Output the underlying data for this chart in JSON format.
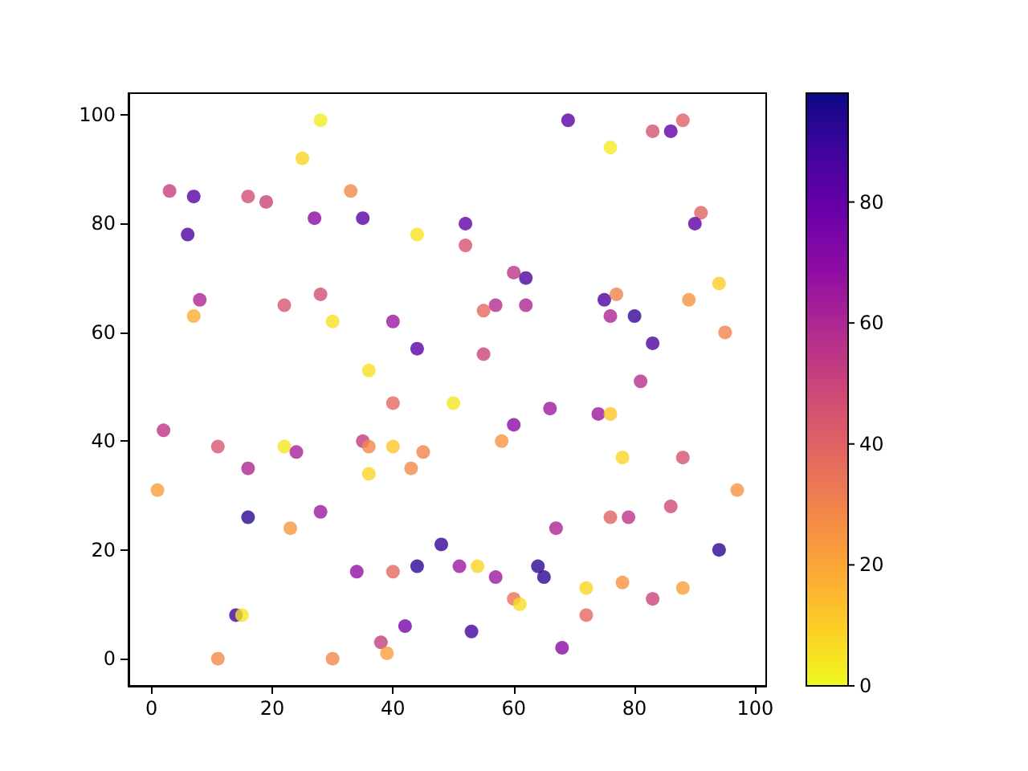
{
  "chart_data": {
    "type": "scatter",
    "marker": "circle",
    "grid": false,
    "x": [
      28,
      25,
      3,
      7,
      16,
      19,
      33,
      27,
      35,
      6,
      44,
      8,
      7,
      22,
      28,
      30,
      40,
      44,
      36,
      2,
      11,
      16,
      22,
      24,
      35,
      36,
      36,
      40,
      40,
      43,
      45,
      1,
      16,
      23,
      28,
      34,
      40,
      44,
      48,
      14,
      15,
      11,
      30,
      38,
      39,
      42,
      69,
      76,
      83,
      86,
      88,
      52,
      52,
      60,
      62,
      57,
      55,
      62,
      55,
      81,
      75,
      77,
      76,
      80,
      83,
      91,
      90,
      94,
      89,
      95,
      50,
      66,
      60,
      58,
      74,
      76,
      78,
      88,
      97,
      86,
      76,
      79,
      67,
      94,
      51,
      54,
      57,
      64,
      65,
      72,
      78,
      88,
      83,
      60,
      61,
      72,
      53,
      68
    ],
    "values": [
      99,
      92,
      86,
      85,
      85,
      84,
      86,
      81,
      81,
      78,
      78,
      66,
      63,
      65,
      67,
      62,
      62,
      57,
      53,
      42,
      39,
      35,
      39,
      38,
      40,
      39,
      34,
      39,
      47,
      35,
      38,
      31,
      26,
      24,
      27,
      16,
      16,
      17,
      21,
      8,
      8,
      0,
      0,
      3,
      1,
      6,
      99,
      94,
      97,
      97,
      99,
      80,
      76,
      71,
      70,
      65,
      64,
      65,
      56,
      51,
      66,
      67,
      63,
      63,
      58,
      82,
      80,
      69,
      66,
      60,
      47,
      46,
      43,
      40,
      45,
      45,
      37,
      37,
      31,
      28,
      26,
      26,
      24,
      20,
      17,
      17,
      15,
      17,
      15,
      13,
      14,
      13,
      11,
      11,
      10,
      8,
      5,
      2
    ],
    "cvalues": [
      3,
      8,
      52,
      82,
      47,
      50,
      28,
      70,
      82,
      85,
      5,
      60,
      18,
      44,
      46,
      6,
      65,
      82,
      6,
      55,
      44,
      60,
      4,
      62,
      53,
      28,
      8,
      12,
      38,
      28,
      30,
      22,
      92,
      24,
      65,
      68,
      38,
      92,
      90,
      88,
      4,
      28,
      28,
      52,
      22,
      75,
      82,
      3,
      45,
      80,
      40,
      80,
      45,
      55,
      85,
      58,
      38,
      60,
      50,
      57,
      85,
      30,
      60,
      90,
      85,
      40,
      82,
      10,
      25,
      30,
      4,
      65,
      70,
      25,
      65,
      12,
      8,
      45,
      25,
      48,
      40,
      55,
      60,
      92,
      65,
      8,
      65,
      92,
      92,
      8,
      25,
      22,
      50,
      35,
      6,
      38,
      88,
      70
    ],
    "xlim": [
      -3.8,
      101.8
    ],
    "ylim": [
      -5,
      104
    ],
    "xticks": [
      0,
      20,
      40,
      60,
      80,
      100
    ],
    "yticks": [
      0,
      20,
      40,
      60,
      80,
      100
    ],
    "clim": [
      0,
      98
    ],
    "cticks": [
      0,
      20,
      40,
      60,
      80
    ]
  }
}
